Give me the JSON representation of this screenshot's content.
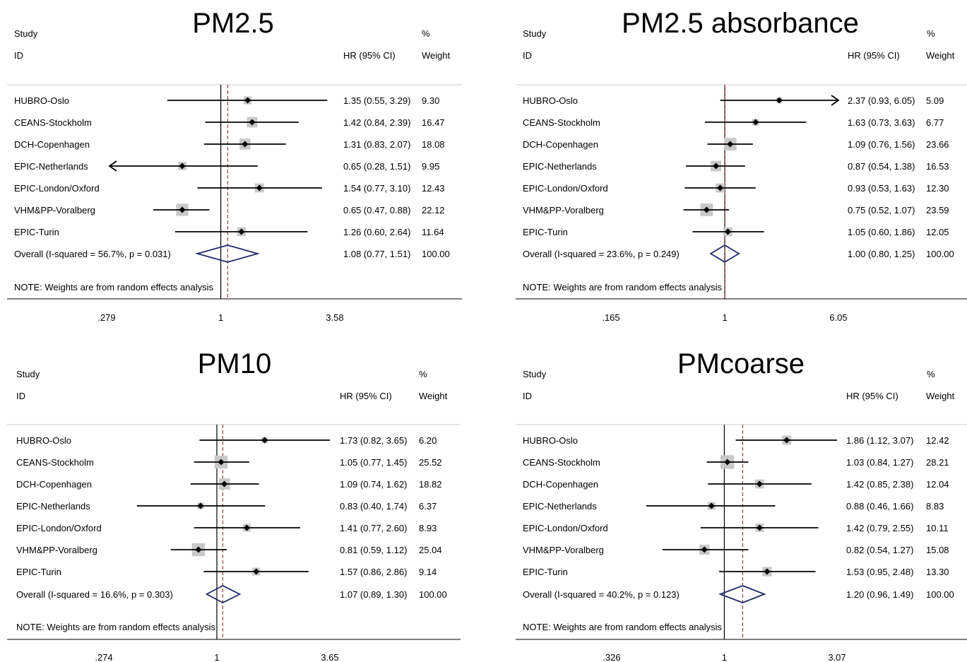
{
  "colors": {
    "overall_diamond": "#1f2a6b",
    "overall_line": "#8b1a1a",
    "weight_box": "#c8c8c8",
    "marker": "#000000"
  },
  "headers": {
    "study": "Study",
    "id": "ID",
    "hr": "HR (95% CI)",
    "pct": "%",
    "weight": "Weight"
  },
  "note": "NOTE: Weights are from random effects analysis",
  "chart_data": [
    {
      "type": "forest",
      "title": "PM2.5",
      "axis": {
        "scale": "log",
        "ticks": [
          0.279,
          1,
          3.58
        ],
        "tick_labels": [
          ".279",
          "1",
          "3.58"
        ]
      },
      "studies": [
        {
          "name": "HUBRO-Oslo",
          "hr": 1.35,
          "lo": 0.55,
          "hi": 3.29,
          "ci_text": "1.35 (0.55, 3.29)",
          "weight": "9.30"
        },
        {
          "name": "CEANS-Stockholm",
          "hr": 1.42,
          "lo": 0.84,
          "hi": 2.39,
          "ci_text": "1.42 (0.84, 2.39)",
          "weight": "16.47"
        },
        {
          "name": "DCH-Copenhagen",
          "hr": 1.31,
          "lo": 0.83,
          "hi": 2.07,
          "ci_text": "1.31 (0.83, 2.07)",
          "weight": "18.08"
        },
        {
          "name": "EPIC-Netherlands",
          "hr": 0.65,
          "lo": 0.28,
          "hi": 1.51,
          "ci_text": "0.65 (0.28, 1.51)",
          "weight": "9.95",
          "lo_arrow": true
        },
        {
          "name": "EPIC-London/Oxford",
          "hr": 1.54,
          "lo": 0.77,
          "hi": 3.1,
          "ci_text": "1.54 (0.77, 3.10)",
          "weight": "12.43"
        },
        {
          "name": "VHM&PP-Voralberg",
          "hr": 0.65,
          "lo": 0.47,
          "hi": 0.88,
          "ci_text": "0.65 (0.47, 0.88)",
          "weight": "22.12"
        },
        {
          "name": "EPIC-Turin",
          "hr": 1.26,
          "lo": 0.6,
          "hi": 2.64,
          "ci_text": "1.26 (0.60, 2.64)",
          "weight": "11.64"
        }
      ],
      "overall": {
        "label": "Overall  (I-squared = 56.7%, p = 0.031)",
        "hr": 1.08,
        "lo": 0.77,
        "hi": 1.51,
        "ci_text": "1.08 (0.77, 1.51)",
        "weight": "100.00"
      }
    },
    {
      "type": "forest",
      "title": "PM2.5 absorbance",
      "axis": {
        "scale": "log",
        "ticks": [
          0.165,
          1,
          6.05
        ],
        "tick_labels": [
          ".165",
          "1",
          "6.05"
        ]
      },
      "studies": [
        {
          "name": "HUBRO-Oslo",
          "hr": 2.37,
          "lo": 0.93,
          "hi": 6.05,
          "ci_text": "2.37 (0.93, 6.05)",
          "weight": "5.09",
          "hi_arrow": true
        },
        {
          "name": "CEANS-Stockholm",
          "hr": 1.63,
          "lo": 0.73,
          "hi": 3.63,
          "ci_text": "1.63 (0.73, 3.63)",
          "weight": "6.77"
        },
        {
          "name": "DCH-Copenhagen",
          "hr": 1.09,
          "lo": 0.76,
          "hi": 1.56,
          "ci_text": "1.09 (0.76, 1.56)",
          "weight": "23.66"
        },
        {
          "name": "EPIC-Netherlands",
          "hr": 0.87,
          "lo": 0.54,
          "hi": 1.38,
          "ci_text": "0.87 (0.54, 1.38)",
          "weight": "16.53"
        },
        {
          "name": "EPIC-London/Oxford",
          "hr": 0.93,
          "lo": 0.53,
          "hi": 1.63,
          "ci_text": "0.93 (0.53, 1.63)",
          "weight": "12.30"
        },
        {
          "name": "VHM&PP-Voralberg",
          "hr": 0.75,
          "lo": 0.52,
          "hi": 1.07,
          "ci_text": "0.75 (0.52, 1.07)",
          "weight": "23.59"
        },
        {
          "name": "EPIC-Turin",
          "hr": 1.05,
          "lo": 0.6,
          "hi": 1.86,
          "ci_text": "1.05 (0.60, 1.86)",
          "weight": "12.05"
        }
      ],
      "overall": {
        "label": "Overall  (I-squared = 23.6%, p = 0.249)",
        "hr": 1.0,
        "lo": 0.8,
        "hi": 1.25,
        "ci_text": "1.00 (0.80, 1.25)",
        "weight": "100.00"
      }
    },
    {
      "type": "forest",
      "title": "PM10",
      "axis": {
        "scale": "log",
        "ticks": [
          0.274,
          1,
          3.65
        ],
        "tick_labels": [
          ".274",
          "1",
          "3.65"
        ]
      },
      "studies": [
        {
          "name": "HUBRO-Oslo",
          "hr": 1.73,
          "lo": 0.82,
          "hi": 3.65,
          "ci_text": "1.73 (0.82, 3.65)",
          "weight": "6.20"
        },
        {
          "name": "CEANS-Stockholm",
          "hr": 1.05,
          "lo": 0.77,
          "hi": 1.45,
          "ci_text": "1.05 (0.77, 1.45)",
          "weight": "25.52"
        },
        {
          "name": "DCH-Copenhagen",
          "hr": 1.09,
          "lo": 0.74,
          "hi": 1.62,
          "ci_text": "1.09 (0.74, 1.62)",
          "weight": "18.82"
        },
        {
          "name": "EPIC-Netherlands",
          "hr": 0.83,
          "lo": 0.4,
          "hi": 1.74,
          "ci_text": "0.83 (0.40, 1.74)",
          "weight": "6.37"
        },
        {
          "name": "EPIC-London/Oxford",
          "hr": 1.41,
          "lo": 0.77,
          "hi": 2.6,
          "ci_text": "1.41 (0.77, 2.60)",
          "weight": "8.93"
        },
        {
          "name": "VHM&PP-Voralberg",
          "hr": 0.81,
          "lo": 0.59,
          "hi": 1.12,
          "ci_text": "0.81 (0.59, 1.12)",
          "weight": "25.04"
        },
        {
          "name": "EPIC-Turin",
          "hr": 1.57,
          "lo": 0.86,
          "hi": 2.86,
          "ci_text": "1.57 (0.86, 2.86)",
          "weight": "9.14"
        }
      ],
      "overall": {
        "label": "Overall  (I-squared = 16.6%, p = 0.303)",
        "hr": 1.07,
        "lo": 0.89,
        "hi": 1.3,
        "ci_text": "1.07 (0.89, 1.30)",
        "weight": "100.00"
      }
    },
    {
      "type": "forest",
      "title": "PMcoarse",
      "axis": {
        "scale": "log",
        "ticks": [
          0.326,
          1,
          3.07
        ],
        "tick_labels": [
          ".326",
          "1",
          "3.07"
        ]
      },
      "studies": [
        {
          "name": "HUBRO-Oslo",
          "hr": 1.86,
          "lo": 1.12,
          "hi": 3.07,
          "ci_text": "1.86 (1.12, 3.07)",
          "weight": "12.42"
        },
        {
          "name": "CEANS-Stockholm",
          "hr": 1.03,
          "lo": 0.84,
          "hi": 1.27,
          "ci_text": "1.03 (0.84, 1.27)",
          "weight": "28.21"
        },
        {
          "name": "DCH-Copenhagen",
          "hr": 1.42,
          "lo": 0.85,
          "hi": 2.38,
          "ci_text": "1.42 (0.85, 2.38)",
          "weight": "12.04"
        },
        {
          "name": "EPIC-Netherlands",
          "hr": 0.88,
          "lo": 0.46,
          "hi": 1.66,
          "ci_text": "0.88 (0.46, 1.66)",
          "weight": "8.83"
        },
        {
          "name": "EPIC-London/Oxford",
          "hr": 1.42,
          "lo": 0.79,
          "hi": 2.55,
          "ci_text": "1.42 (0.79, 2.55)",
          "weight": "10.11"
        },
        {
          "name": "VHM&PP-Voralberg",
          "hr": 0.82,
          "lo": 0.54,
          "hi": 1.27,
          "ci_text": "0.82 (0.54, 1.27)",
          "weight": "15.08"
        },
        {
          "name": "EPIC-Turin",
          "hr": 1.53,
          "lo": 0.95,
          "hi": 2.48,
          "ci_text": "1.53 (0.95, 2.48)",
          "weight": "13.30"
        }
      ],
      "overall": {
        "label": "Overall  (I-squared = 40.2%, p = 0.123)",
        "hr": 1.2,
        "lo": 0.96,
        "hi": 1.49,
        "ci_text": "1.20 (0.96, 1.49)",
        "weight": "100.00"
      }
    }
  ]
}
